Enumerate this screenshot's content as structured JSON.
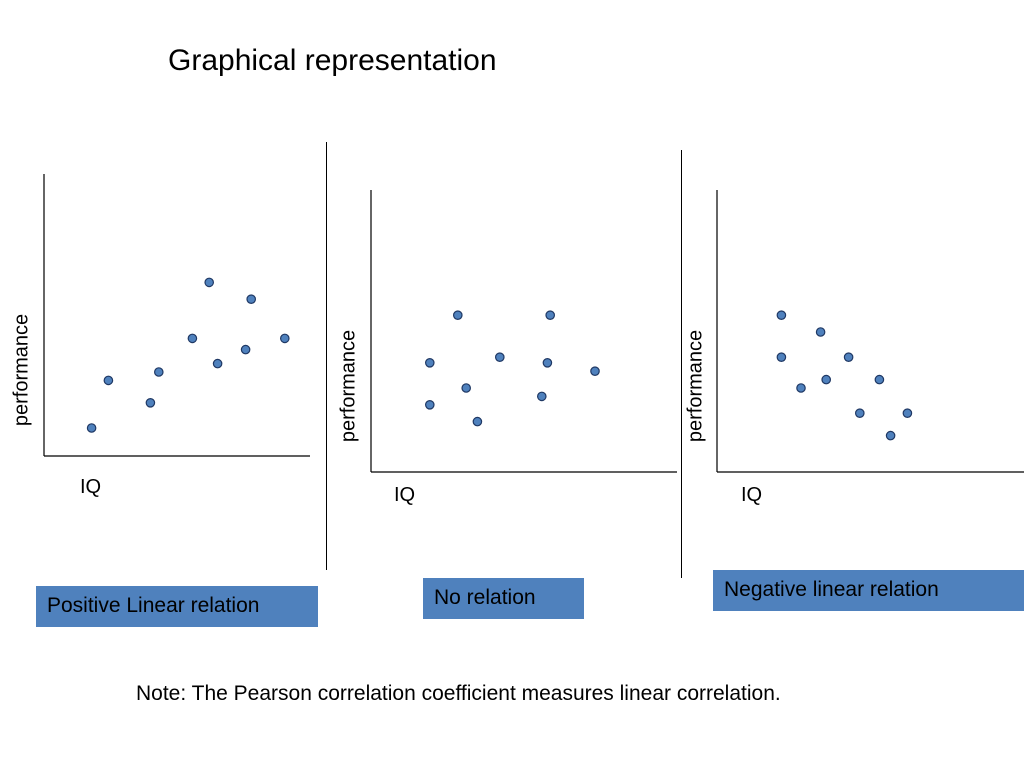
{
  "title": "Graphical representation",
  "note": "Note: The Pearson correlation coefficient measures linear correlation.",
  "colors": {
    "point_fill": "#4f81bd",
    "point_stroke": "#1f3864",
    "caption_bg": "#4f81bd"
  },
  "chart_data": [
    {
      "type": "scatter",
      "title": "",
      "xlabel": "IQ",
      "ylabel": "performance",
      "caption": "Positive Linear relation",
      "xlim": [
        0,
        10
      ],
      "ylim": [
        0,
        10
      ],
      "points": [
        {
          "x": 1.7,
          "y": 1.0
        },
        {
          "x": 2.3,
          "y": 2.7
        },
        {
          "x": 3.8,
          "y": 1.9
        },
        {
          "x": 4.1,
          "y": 3.0
        },
        {
          "x": 5.3,
          "y": 4.2
        },
        {
          "x": 5.9,
          "y": 6.2
        },
        {
          "x": 6.2,
          "y": 3.3
        },
        {
          "x": 7.2,
          "y": 3.8
        },
        {
          "x": 7.4,
          "y": 5.6
        },
        {
          "x": 8.6,
          "y": 4.2
        }
      ]
    },
    {
      "type": "scatter",
      "title": "",
      "xlabel": "IQ",
      "ylabel": "performance",
      "caption": "No relation",
      "xlim": [
        0,
        10
      ],
      "ylim": [
        0,
        10
      ],
      "points": [
        {
          "x": 2.1,
          "y": 2.4
        },
        {
          "x": 2.1,
          "y": 3.9
        },
        {
          "x": 3.1,
          "y": 5.6
        },
        {
          "x": 3.4,
          "y": 3.0
        },
        {
          "x": 3.8,
          "y": 1.8
        },
        {
          "x": 4.6,
          "y": 4.1
        },
        {
          "x": 6.1,
          "y": 2.7
        },
        {
          "x": 6.3,
          "y": 3.9
        },
        {
          "x": 6.4,
          "y": 5.6
        },
        {
          "x": 8.0,
          "y": 3.6
        }
      ]
    },
    {
      "type": "scatter",
      "title": "",
      "xlabel": "IQ",
      "ylabel": "performance",
      "caption": "Negative linear relation",
      "xlim": [
        0,
        10
      ],
      "ylim": [
        0,
        10
      ],
      "points": [
        {
          "x": 2.3,
          "y": 5.6
        },
        {
          "x": 2.3,
          "y": 4.1
        },
        {
          "x": 3.0,
          "y": 3.0
        },
        {
          "x": 3.7,
          "y": 5.0
        },
        {
          "x": 3.9,
          "y": 3.3
        },
        {
          "x": 4.7,
          "y": 4.1
        },
        {
          "x": 5.1,
          "y": 2.1
        },
        {
          "x": 5.8,
          "y": 3.3
        },
        {
          "x": 6.2,
          "y": 1.3
        },
        {
          "x": 6.8,
          "y": 2.1
        }
      ]
    }
  ]
}
